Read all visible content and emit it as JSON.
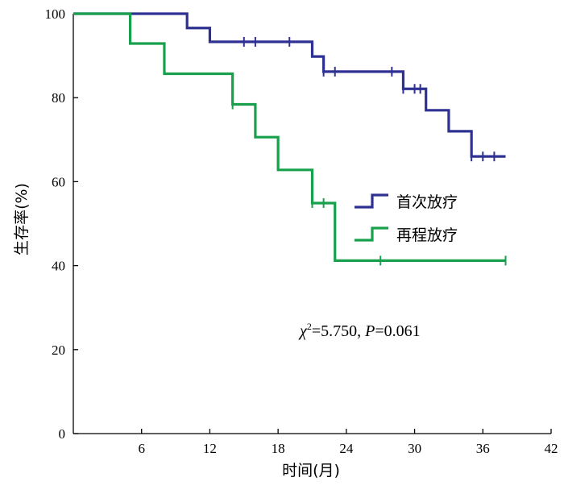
{
  "chart_data": {
    "type": "line",
    "subtype": "kaplan-meier-step",
    "xlabel": "时间(月)",
    "ylabel": "生存率(%)",
    "xlim": [
      0,
      42
    ],
    "ylim": [
      0,
      100
    ],
    "xticks": [
      6,
      12,
      18,
      24,
      30,
      36,
      42
    ],
    "yticks": [
      0,
      20,
      40,
      60,
      80,
      100
    ],
    "grid": false,
    "legend_position": "center-right",
    "annotation": {
      "chi_symbol": "χ",
      "superscript": "2",
      "chi_value": "=5.750, ",
      "p_symbol": "P",
      "p_value": "=0.061"
    },
    "series": [
      {
        "name": "首次放疗",
        "color": "#2e3192",
        "x": [
          0,
          10,
          12,
          21,
          22,
          29,
          31,
          33,
          35,
          38
        ],
        "y": [
          100,
          96.6,
          93.3,
          89.8,
          86.2,
          82.1,
          77.0,
          72.0,
          66.0,
          66.0
        ],
        "censored_x": [
          15,
          16,
          19,
          22,
          23,
          28,
          29,
          30,
          30.5,
          35,
          36,
          37
        ],
        "censored_y": [
          93.3,
          93.3,
          93.3,
          86.2,
          86.2,
          86.2,
          82.1,
          82.1,
          82.1,
          66.0,
          66.0,
          66.0
        ]
      },
      {
        "name": "再程放疗",
        "color": "#18a04c",
        "x": [
          0,
          5,
          8,
          14,
          16,
          18,
          21,
          23,
          38
        ],
        "y": [
          100,
          92.9,
          85.7,
          78.4,
          70.6,
          62.8,
          54.9,
          41.2,
          41.2
        ],
        "censored_x": [
          14,
          21,
          22,
          27,
          38
        ],
        "censored_y": [
          78.4,
          54.9,
          54.9,
          41.2,
          41.2
        ]
      }
    ]
  }
}
